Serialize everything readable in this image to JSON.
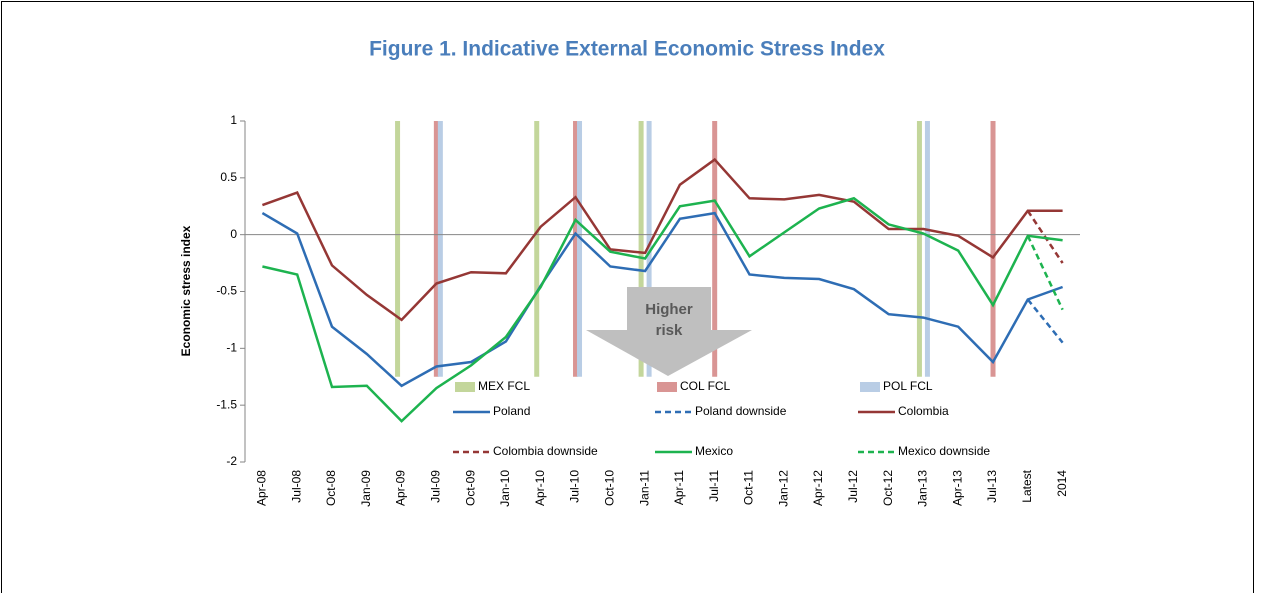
{
  "chart_data": {
    "type": "line",
    "title": "Figure 1. Indicative External Economic Stress Index",
    "y_label": "Economic stress index",
    "annotation": {
      "lines": [
        "Higher",
        "risk"
      ]
    },
    "categories": [
      "Apr-08",
      "Jul-08",
      "Oct-08",
      "Jan-09",
      "Apr-09",
      "Jul-09",
      "Oct-09",
      "Jan-10",
      "Apr-10",
      "Jul-10",
      "Oct-10",
      "Jan-11",
      "Apr-11",
      "Jul-11",
      "Oct-11",
      "Jan-12",
      "Apr-12",
      "Jul-12",
      "Oct-12",
      "Jan-13",
      "Apr-13",
      "Jul-13",
      "Latest",
      "2014"
    ],
    "ylim": [
      -2,
      1
    ],
    "yticks": [
      1,
      0.5,
      0,
      -0.5,
      -1,
      -1.5,
      -2
    ],
    "fcl_range": [
      -1.25,
      1
    ],
    "fcl": [
      {
        "name": "MEX FCL",
        "color": "#c3d69b",
        "categories": [
          "Apr-09",
          "Apr-10",
          "Jan-11",
          "Jan-13"
        ]
      },
      {
        "name": "COL FCL",
        "color": "#d99594",
        "categories": [
          "Jul-09",
          "Jul-10",
          "Jul-11",
          "Jul-13"
        ]
      },
      {
        "name": "POL FCL",
        "color": "#b9cde5",
        "categories": [
          "Jul-09",
          "Jul-10",
          "Jan-11",
          "Jan-13"
        ]
      }
    ],
    "series": [
      {
        "name": "Poland",
        "color": "#2e6db4",
        "dashed": false,
        "values": [
          0.19,
          0.01,
          -0.81,
          -1.05,
          -1.33,
          -1.16,
          -1.12,
          -0.94,
          -0.45,
          0.01,
          -0.28,
          -0.32,
          0.14,
          0.19,
          -0.35,
          -0.38,
          -0.39,
          -0.48,
          -0.7,
          -0.73,
          -0.81,
          -1.12,
          -0.57,
          -0.46
        ]
      },
      {
        "name": "Poland downside",
        "color": "#2e6db4",
        "dashed": true,
        "values": [
          null,
          null,
          null,
          null,
          null,
          null,
          null,
          null,
          null,
          null,
          null,
          null,
          null,
          null,
          null,
          null,
          null,
          null,
          null,
          null,
          null,
          null,
          -0.57,
          -0.95
        ]
      },
      {
        "name": "Colombia",
        "color": "#953735",
        "dashed": false,
        "values": [
          0.26,
          0.37,
          -0.27,
          -0.53,
          -0.75,
          -0.43,
          -0.33,
          -0.34,
          0.07,
          0.33,
          -0.13,
          -0.16,
          0.44,
          0.66,
          0.32,
          0.31,
          0.35,
          0.29,
          0.05,
          0.05,
          -0.01,
          -0.2,
          0.21,
          0.21
        ]
      },
      {
        "name": "Colombia downside",
        "color": "#953735",
        "dashed": true,
        "values": [
          null,
          null,
          null,
          null,
          null,
          null,
          null,
          null,
          null,
          null,
          null,
          null,
          null,
          null,
          null,
          null,
          null,
          null,
          null,
          null,
          null,
          null,
          0.21,
          -0.25
        ]
      },
      {
        "name": "Mexico",
        "color": "#1db34f",
        "dashed": false,
        "values": [
          -0.28,
          -0.35,
          -1.34,
          -1.33,
          -1.64,
          -1.35,
          -1.15,
          -0.9,
          -0.46,
          0.13,
          -0.15,
          -0.21,
          0.25,
          0.3,
          -0.19,
          0.02,
          0.23,
          0.32,
          0.09,
          0.01,
          -0.14,
          -0.62,
          -0.01,
          -0.05
        ]
      },
      {
        "name": "Mexico downside",
        "color": "#1db34f",
        "dashed": true,
        "values": [
          null,
          null,
          null,
          null,
          null,
          null,
          null,
          null,
          null,
          null,
          null,
          null,
          null,
          null,
          null,
          null,
          null,
          null,
          null,
          null,
          null,
          null,
          -0.01,
          -0.66
        ]
      }
    ]
  }
}
